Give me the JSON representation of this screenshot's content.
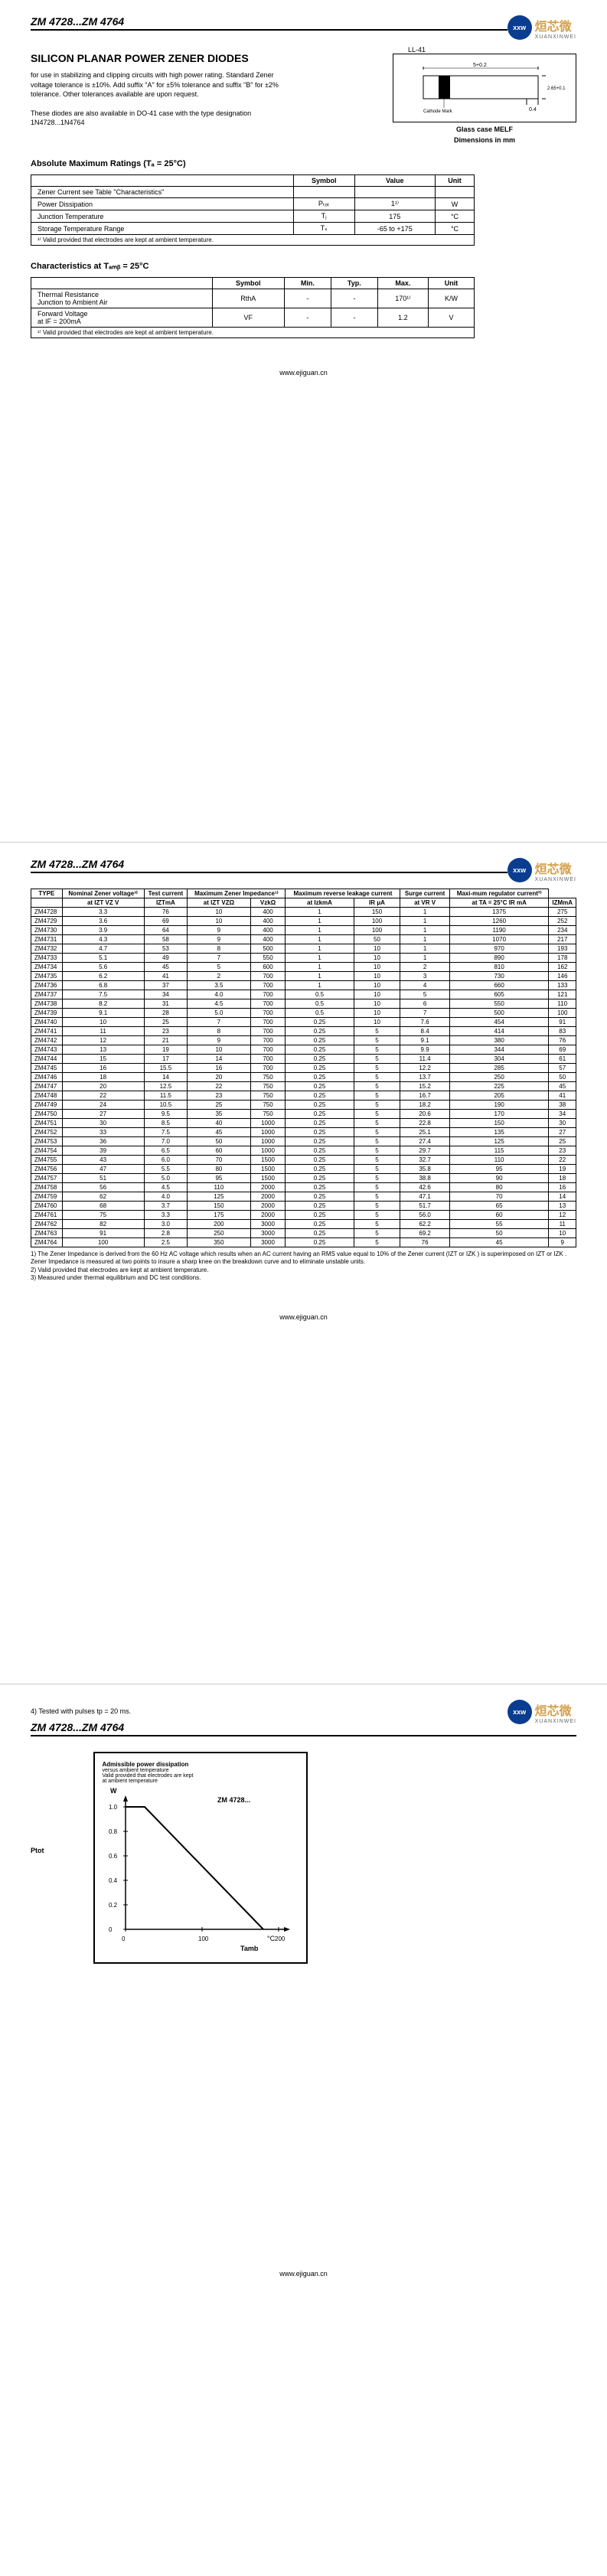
{
  "header": {
    "part_range": "ZM 4728...ZM 4764",
    "logo_badge": "xxw",
    "logo_cn": "烜芯微",
    "logo_en": "XUANXINWEI"
  },
  "title": "SILICON PLANAR POWER ZENER DIODES",
  "desc1": "for use in stabilizing and clipping circuits with high power rating. Standard Zener voltage tolerance is ±10%. Add suffix \"A\" for ±5% tolerance and suffix \"B\" for ±2% tolerance. Other tolerances available are upon request.",
  "desc2": "These diodes are also available in DO-41 case with the type designation 1N4728...1N4764",
  "package": {
    "label": "LL-41",
    "dim1": "5+0.2",
    "dim2": "2.65+0.1",
    "dim3": "0.4",
    "cathode": "Cathode Mark",
    "case_label": "Glass case MELF",
    "dim_label": "Dimensions in mm"
  },
  "abs_title": "Absolute Maximum Ratings (Tₐ = 25°C)",
  "abs_headers": [
    "",
    "Symbol",
    "Value",
    "Unit"
  ],
  "abs_rows": [
    [
      "Zener Current see Table \"Characteristics\"",
      "",
      "",
      ""
    ],
    [
      "Power Dissipation",
      "Pₜₒₜ",
      "1¹⁾",
      "W"
    ],
    [
      "Junction Temperature",
      "Tⱼ",
      "175",
      "°C"
    ],
    [
      "Storage Temperature Range",
      "Tₛ",
      "-65 to +175",
      "°C"
    ]
  ],
  "abs_foot": "¹⁾ Valid provided that electrodes are kept at ambient temperature.",
  "char_title": "Characteristics at Tₐₘᵦ = 25°C",
  "char_headers": [
    "",
    "Symbol",
    "Min.",
    "Typ.",
    "Max.",
    "Unit"
  ],
  "char_rows": [
    [
      "Thermal Resistance\nJunction to Ambient Air",
      "RthA",
      "-",
      "-",
      "170¹⁾",
      "K/W"
    ],
    [
      "Forward Voltage\nat IF = 200mA",
      "VF",
      "-",
      "-",
      "1.2",
      "V"
    ]
  ],
  "char_foot": "¹⁾ Valid provided that electrodes are kept at ambient temperature.",
  "url": "www.ejiguan.cn",
  "big_headers_row1": [
    "TYPE",
    "Nominal Zener voltage³⁾",
    "Test current",
    "Maximum Zener Impedance¹⁾",
    "",
    "Maximum reverse leakage current",
    "",
    "Surge current",
    "Maxi-mum regulator current²⁾"
  ],
  "big_headers_row2": [
    "",
    "at IZT VZ V",
    "IZTmA",
    "at IZT VZΩ",
    "VzkΩ",
    "at IzkmA",
    "IR μA",
    "at VR V",
    "at TA = 25°C IR mA",
    "IZMmA"
  ],
  "big_rows": [
    [
      "ZM4728",
      "3.3",
      "76",
      "10",
      "400",
      "1",
      "150",
      "1",
      "1375",
      "275"
    ],
    [
      "ZM4729",
      "3.6",
      "69",
      "10",
      "400",
      "1",
      "100",
      "1",
      "1260",
      "252"
    ],
    [
      "ZM4730",
      "3.9",
      "64",
      "9",
      "400",
      "1",
      "100",
      "1",
      "1190",
      "234"
    ],
    [
      "ZM4731",
      "4.3",
      "58",
      "9",
      "400",
      "1",
      "50",
      "1",
      "1070",
      "217"
    ],
    [
      "ZM4732",
      "4.7",
      "53",
      "8",
      "500",
      "1",
      "10",
      "1",
      "970",
      "193"
    ],
    [
      "ZM4733",
      "5.1",
      "49",
      "7",
      "550",
      "1",
      "10",
      "1",
      "890",
      "178"
    ],
    [
      "ZM4734",
      "5.6",
      "45",
      "5",
      "600",
      "1",
      "10",
      "2",
      "810",
      "162"
    ],
    [
      "ZM4735",
      "6.2",
      "41",
      "2",
      "700",
      "1",
      "10",
      "3",
      "730",
      "146"
    ],
    [
      "ZM4736",
      "6.8",
      "37",
      "3.5",
      "700",
      "1",
      "10",
      "4",
      "660",
      "133"
    ],
    [
      "ZM4737",
      "7.5",
      "34",
      "4.0",
      "700",
      "0.5",
      "10",
      "5",
      "605",
      "121"
    ],
    [
      "ZM4738",
      "8.2",
      "31",
      "4.5",
      "700",
      "0.5",
      "10",
      "6",
      "550",
      "110"
    ],
    [
      "ZM4739",
      "9.1",
      "28",
      "5.0",
      "700",
      "0.5",
      "10",
      "7",
      "500",
      "100"
    ],
    [
      "ZM4740",
      "10",
      "25",
      "7",
      "700",
      "0.25",
      "10",
      "7.6",
      "454",
      "91"
    ],
    [
      "ZM4741",
      "11",
      "23",
      "8",
      "700",
      "0.25",
      "5",
      "8.4",
      "414",
      "83"
    ],
    [
      "ZM4742",
      "12",
      "21",
      "9",
      "700",
      "0.25",
      "5",
      "9.1",
      "380",
      "76"
    ],
    [
      "ZM4743",
      "13",
      "19",
      "10",
      "700",
      "0.25",
      "5",
      "9.9",
      "344",
      "69"
    ],
    [
      "ZM4744",
      "15",
      "17",
      "14",
      "700",
      "0.25",
      "5",
      "11.4",
      "304",
      "61"
    ],
    [
      "ZM4745",
      "16",
      "15.5",
      "16",
      "700",
      "0.25",
      "5",
      "12.2",
      "285",
      "57"
    ],
    [
      "ZM4746",
      "18",
      "14",
      "20",
      "750",
      "0.25",
      "5",
      "13.7",
      "250",
      "50"
    ],
    [
      "ZM4747",
      "20",
      "12.5",
      "22",
      "750",
      "0.25",
      "5",
      "15.2",
      "225",
      "45"
    ],
    [
      "ZM4748",
      "22",
      "11.5",
      "23",
      "750",
      "0.25",
      "5",
      "16.7",
      "205",
      "41"
    ],
    [
      "ZM4749",
      "24",
      "10.5",
      "25",
      "750",
      "0.25",
      "5",
      "18.2",
      "190",
      "38"
    ],
    [
      "ZM4750",
      "27",
      "9.5",
      "35",
      "750",
      "0.25",
      "5",
      "20.6",
      "170",
      "34"
    ],
    [
      "ZM4751",
      "30",
      "8.5",
      "40",
      "1000",
      "0.25",
      "5",
      "22.8",
      "150",
      "30"
    ],
    [
      "ZM4752",
      "33",
      "7.5",
      "45",
      "1000",
      "0.25",
      "5",
      "25.1",
      "135",
      "27"
    ],
    [
      "ZM4753",
      "36",
      "7.0",
      "50",
      "1000",
      "0.25",
      "5",
      "27.4",
      "125",
      "25"
    ],
    [
      "ZM4754",
      "39",
      "6.5",
      "60",
      "1000",
      "0.25",
      "5",
      "29.7",
      "115",
      "23"
    ],
    [
      "ZM4755",
      "43",
      "6.0",
      "70",
      "1500",
      "0.25",
      "5",
      "32.7",
      "110",
      "22"
    ],
    [
      "ZM4756",
      "47",
      "5.5",
      "80",
      "1500",
      "0.25",
      "5",
      "35.8",
      "95",
      "19"
    ],
    [
      "ZM4757",
      "51",
      "5.0",
      "95",
      "1500",
      "0.25",
      "5",
      "38.8",
      "90",
      "18"
    ],
    [
      "ZM4758",
      "56",
      "4.5",
      "110",
      "2000",
      "0.25",
      "5",
      "42.6",
      "80",
      "16"
    ],
    [
      "ZM4759",
      "62",
      "4.0",
      "125",
      "2000",
      "0.25",
      "5",
      "47.1",
      "70",
      "14"
    ],
    [
      "ZM4760",
      "68",
      "3.7",
      "150",
      "2000",
      "0.25",
      "5",
      "51.7",
      "65",
      "13"
    ],
    [
      "ZM4761",
      "75",
      "3.3",
      "175",
      "2000",
      "0.25",
      "5",
      "56.0",
      "60",
      "12"
    ],
    [
      "ZM4762",
      "82",
      "3.0",
      "200",
      "3000",
      "0.25",
      "5",
      "62.2",
      "55",
      "11"
    ],
    [
      "ZM4763",
      "91",
      "2.8",
      "250",
      "3000",
      "0.25",
      "5",
      "69.2",
      "50",
      "10"
    ],
    [
      "ZM4764",
      "100",
      "2.5",
      "350",
      "3000",
      "0.25",
      "5",
      "76",
      "45",
      "9"
    ]
  ],
  "notes": [
    "1) The Zener Impedance is derived from the 60 Hz AC voltage which results when an AC current having an RMS value equal to 10% of the Zener current (IZT or IZK ) is superimposed on IZT or IZK . Zener Impedance is measured at two points to insure a sharp knee on the breakdown curve and to eliminate unstable units.",
    "2) Valid provided that electrodes are kept at ambient temperature.",
    "3) Measured under thermal equilibrium and DC test conditions."
  ],
  "note4": "4) Tested with pulses tp = 20 ms.",
  "graph": {
    "title": "Admissible power dissipation",
    "subtitle1": "versus ambient temperature",
    "subtitle2": "Valid provided that electrodes are kept",
    "subtitle3": "at ambient temperature",
    "series_label": "ZM 4728...",
    "y_label": "Ptot",
    "y_unit": "W",
    "y_values": [
      "1.0",
      "0.8",
      "0.6",
      "0.4",
      "0.2",
      "0"
    ],
    "x_label": "Tamb",
    "x_unit": "°C",
    "x_values": [
      "0",
      "100",
      "200"
    ],
    "line_color": "#000000",
    "bg_color": "#ffffff"
  }
}
